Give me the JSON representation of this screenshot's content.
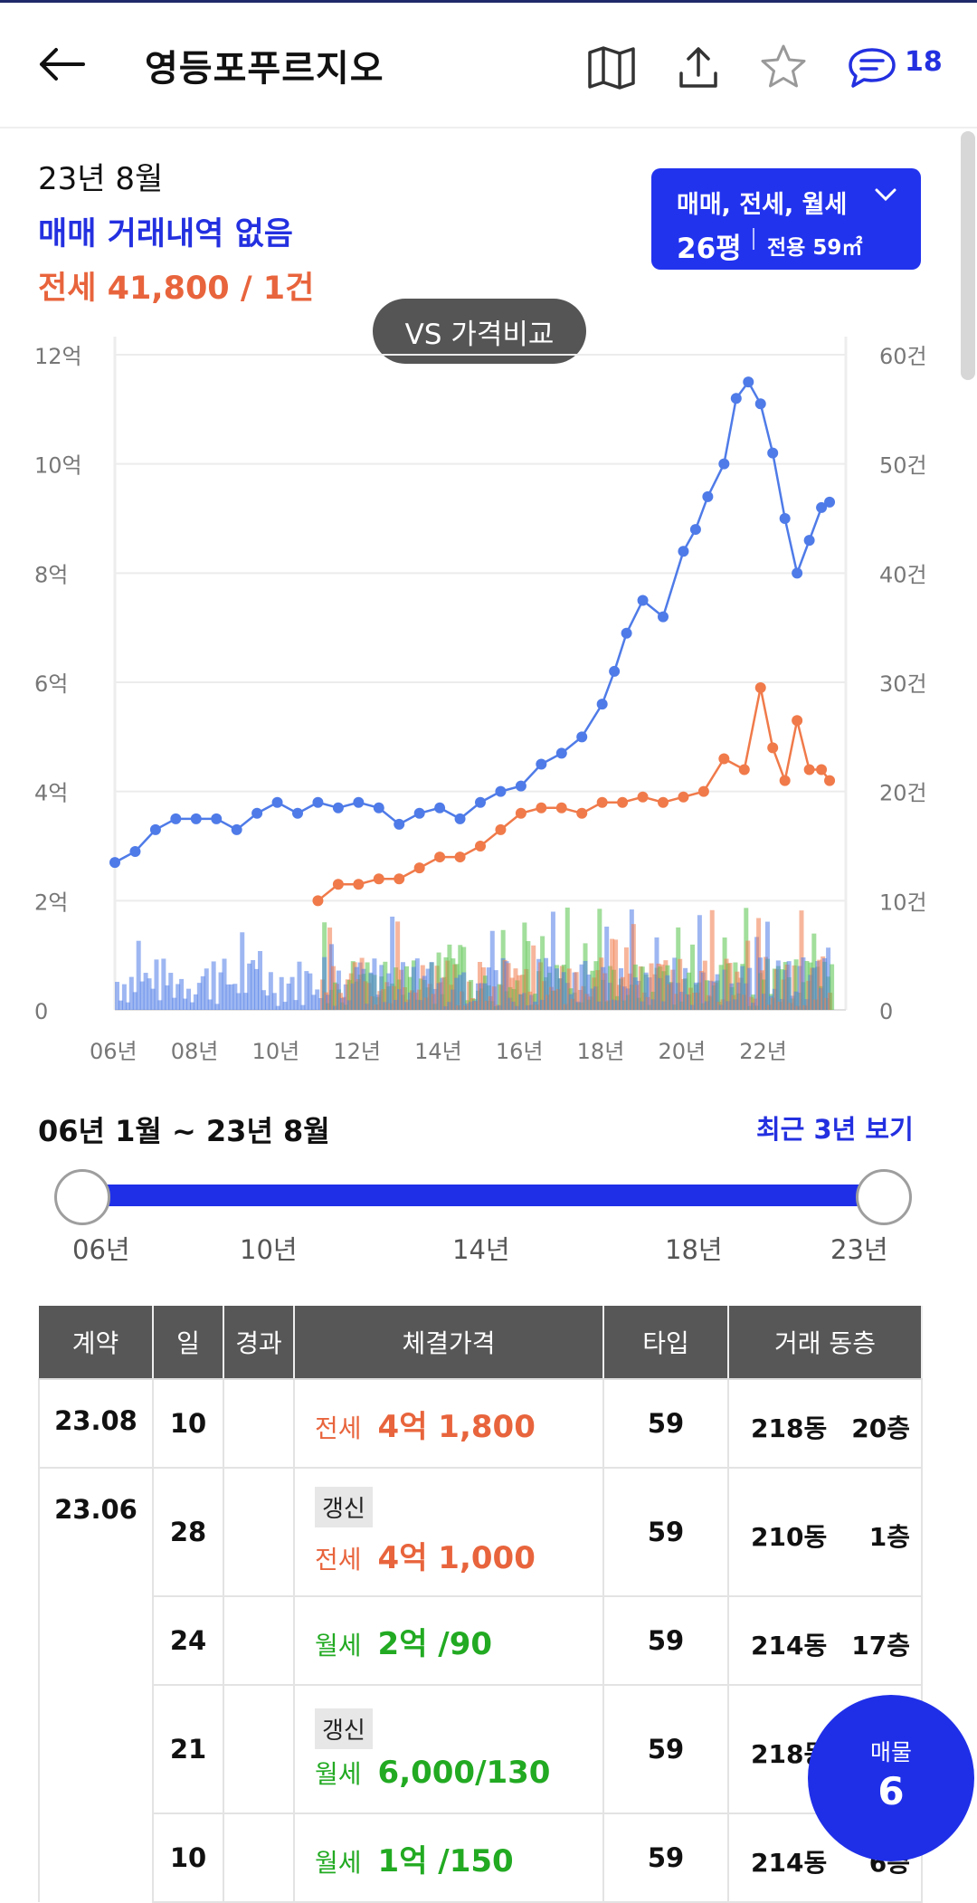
{
  "header": {
    "title": "영등포푸르지오",
    "comment_count": "18"
  },
  "summary": {
    "date": "23년 8월",
    "sale_text": "매매 거래내역 없음",
    "jeonse_label": "전세",
    "jeonse_value": "41,800 / 1건"
  },
  "filter": {
    "deal_types": "매매, 전세, 월세",
    "size_pyeong": "26평",
    "area": "전용 59㎡"
  },
  "compare_button": "VS 가격비교",
  "chart_data": {
    "type": "line",
    "x_tick_labels": [
      "06년",
      "08년",
      "10년",
      "12년",
      "14년",
      "16년",
      "18년",
      "20년",
      "22년"
    ],
    "y_left_ticks": [
      "0",
      "2억",
      "4억",
      "6억",
      "8억",
      "10억",
      "12억"
    ],
    "y_right_ticks": [
      "0",
      "10건",
      "20건",
      "30건",
      "40건",
      "50건",
      "60건"
    ],
    "ylim_left": [
      0,
      12
    ],
    "ylim_right": [
      0,
      60
    ],
    "grid": true,
    "colors": {
      "sale": "#4f7be8",
      "jeonse": "#f07a4a",
      "monthly": "#55c24a"
    },
    "series": [
      {
        "unit": "억",
        "x": [
          2006.0,
          2006.5,
          2007.0,
          2007.5,
          2008.0,
          2008.5,
          2009.0,
          2009.5,
          2010.0,
          2010.5,
          2011.0,
          2011.5,
          2012.0,
          2012.5,
          2013.0,
          2013.5,
          2014.0,
          2014.5,
          2015.0,
          2015.5,
          2016.0,
          2016.5,
          2017.0,
          2017.5,
          2018.0,
          2018.3,
          2018.6,
          2019.0,
          2019.5,
          2020.0,
          2020.3,
          2020.6,
          2021.0,
          2021.3,
          2021.6,
          2021.9,
          2022.2,
          2022.5,
          2022.8,
          2023.1,
          2023.4,
          2023.6
        ],
        "values": [
          2.7,
          2.9,
          3.3,
          3.5,
          3.5,
          3.5,
          3.3,
          3.6,
          3.8,
          3.6,
          3.8,
          3.7,
          3.8,
          3.7,
          3.4,
          3.6,
          3.7,
          3.5,
          3.8,
          4.0,
          4.1,
          4.5,
          4.7,
          5.0,
          5.6,
          6.2,
          6.9,
          7.5,
          7.2,
          8.4,
          8.8,
          9.4,
          10.0,
          11.2,
          11.5,
          11.1,
          10.2,
          9.0,
          8.0,
          8.6,
          9.2,
          9.3
        ]
      },
      {
        "unit": "억",
        "x": [
          2011.0,
          2011.5,
          2012.0,
          2012.5,
          2013.0,
          2013.5,
          2014.0,
          2014.5,
          2015.0,
          2015.5,
          2016.0,
          2016.5,
          2017.0,
          2017.5,
          2018.0,
          2018.5,
          2019.0,
          2019.5,
          2020.0,
          2020.5,
          2021.0,
          2021.5,
          2021.9,
          2022.2,
          2022.5,
          2022.8,
          2023.1,
          2023.4,
          2023.6
        ],
        "values": [
          2.0,
          2.3,
          2.3,
          2.4,
          2.4,
          2.6,
          2.8,
          2.8,
          3.0,
          3.3,
          3.6,
          3.7,
          3.7,
          3.6,
          3.8,
          3.8,
          3.9,
          3.8,
          3.9,
          4.0,
          4.6,
          4.4,
          5.9,
          4.8,
          4.2,
          5.3,
          4.4,
          4.4,
          4.2
        ]
      }
    ]
  },
  "range": {
    "text": "06년 1월 ~ 23년 8월",
    "recent_link": "최근 3년 보기",
    "labels": [
      "06년",
      "10년",
      "14년",
      "18년",
      "23년"
    ]
  },
  "table": {
    "headers": [
      "계약",
      "일",
      "경과",
      "체결가격",
      "타입",
      "거래 동층"
    ],
    "rows": [
      {
        "contract": "23.08",
        "day": "10",
        "tag": "",
        "kind": "전세",
        "price": "4억 1,800",
        "type": "59",
        "dong": "218동",
        "floor": "20층"
      },
      {
        "contract": "23.06",
        "day": "28",
        "tag": "갱신",
        "kind": "전세",
        "price": "4억 1,000",
        "type": "59",
        "dong": "210동",
        "floor": "1층"
      },
      {
        "contract": "",
        "day": "24",
        "tag": "",
        "kind": "월세",
        "price": "2억 /90",
        "type": "59",
        "dong": "214동",
        "floor": "17층"
      },
      {
        "contract": "",
        "day": "21",
        "tag": "갱신",
        "kind": "월세",
        "price": "6,000/130",
        "type": "59",
        "dong": "218동",
        "floor": ""
      },
      {
        "contract": "",
        "day": "10",
        "tag": "",
        "kind": "월세",
        "price": "1억 /150",
        "type": "59",
        "dong": "214동",
        "floor": "6층"
      }
    ]
  },
  "fab": {
    "label": "매물",
    "count": "6"
  }
}
